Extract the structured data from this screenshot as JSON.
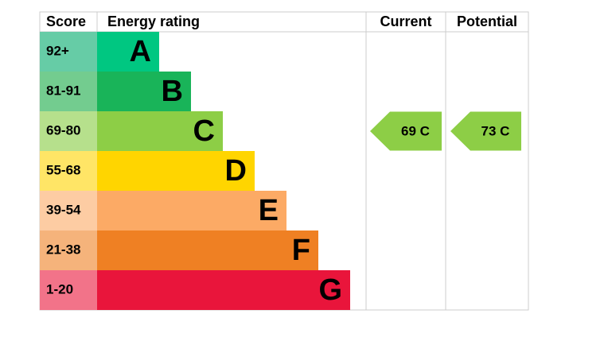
{
  "header": {
    "score": "Score",
    "rating": "Energy rating",
    "current": "Current",
    "potential": "Potential"
  },
  "rows": [
    {
      "score": "92+",
      "letter": "A",
      "color": "#00c781",
      "score_color": "#66cca6"
    },
    {
      "score": "81-91",
      "letter": "B",
      "color": "#19b459",
      "score_color": "#73cc8f"
    },
    {
      "score": "69-80",
      "letter": "C",
      "color": "#8dce46",
      "score_color": "#b6e08c"
    },
    {
      "score": "55-68",
      "letter": "D",
      "color": "#ffd500",
      "score_color": "#ffe566"
    },
    {
      "score": "39-54",
      "letter": "E",
      "color": "#fcaa65",
      "score_color": "#fdcca3"
    },
    {
      "score": "21-38",
      "letter": "F",
      "color": "#ef8023",
      "score_color": "#f5b37b"
    },
    {
      "score": "1-20",
      "letter": "G",
      "color": "#e9153b",
      "score_color": "#f27389"
    }
  ],
  "current": {
    "label": "69 C",
    "color": "#8dce46"
  },
  "potential": {
    "label": "73 C",
    "color": "#8dce46"
  }
}
